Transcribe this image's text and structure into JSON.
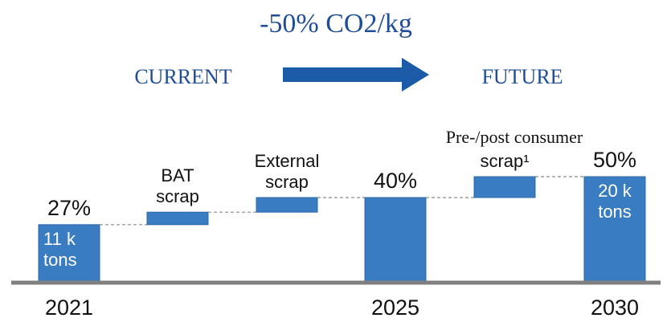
{
  "header": {
    "headline": "-50% CO2/kg",
    "from_label": "CURRENT",
    "to_label": "FUTURE"
  },
  "colors": {
    "bar": "#3a7cc1",
    "bar_edge": "#2c68a8",
    "header_text": "#1f4e97",
    "arrow": "#1a5aa6",
    "axis": "#808080",
    "connector": "#8a8a8a"
  },
  "chart_data": {
    "type": "bar",
    "subtype": "waterfall",
    "categories": [
      "2021",
      "BAT scrap",
      "External scrap",
      "2025",
      "Pre-/post consumer scrap¹",
      "2030"
    ],
    "x_tick_labels": [
      "2021",
      "",
      "",
      "2025",
      "",
      "2030"
    ],
    "step_labels": [
      [],
      [
        "BAT",
        "scrap"
      ],
      [
        "External",
        "scrap"
      ],
      [],
      [
        "Pre-/post consumer",
        "scrap¹"
      ],
      []
    ],
    "total_labels": [
      "27%",
      "",
      "",
      "40%",
      "",
      "50%"
    ],
    "inner_labels": [
      [
        "11 k",
        "tons"
      ],
      [],
      [],
      [],
      [],
      [
        "20 k",
        "tons"
      ]
    ],
    "values": [
      27,
      6,
      7,
      40,
      10,
      50
    ],
    "bar_kind": [
      "total",
      "increase",
      "increase",
      "total",
      "increase",
      "total"
    ],
    "unit": "%",
    "ylim": [
      0,
      55
    ],
    "grid": false,
    "legend": "none"
  }
}
